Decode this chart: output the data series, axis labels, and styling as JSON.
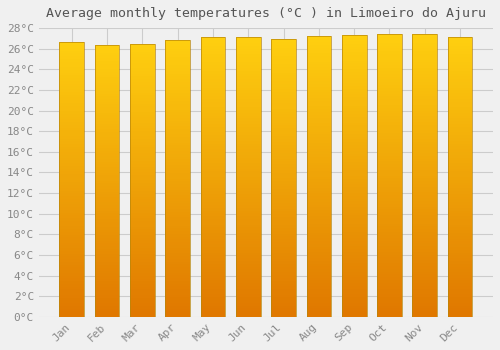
{
  "title": "Average monthly temperatures (°C ) in Limoeiro do Ajuru",
  "months": [
    "Jan",
    "Feb",
    "Mar",
    "Apr",
    "May",
    "Jun",
    "Jul",
    "Aug",
    "Sep",
    "Oct",
    "Nov",
    "Dec"
  ],
  "values": [
    26.6,
    26.4,
    26.5,
    26.8,
    27.1,
    27.1,
    26.9,
    27.2,
    27.3,
    27.4,
    27.4,
    27.1
  ],
  "bar_color_mid": "#FFA500",
  "bar_color_top": "#FFD700",
  "bar_color_bottom": "#E08000",
  "bar_edge_color": "#B8860B",
  "ylim": [
    0,
    28
  ],
  "ytick_step": 2,
  "background_color": "#f0f0f0",
  "grid_color": "#cccccc",
  "title_fontsize": 9.5,
  "tick_fontsize": 8,
  "font_family": "monospace"
}
